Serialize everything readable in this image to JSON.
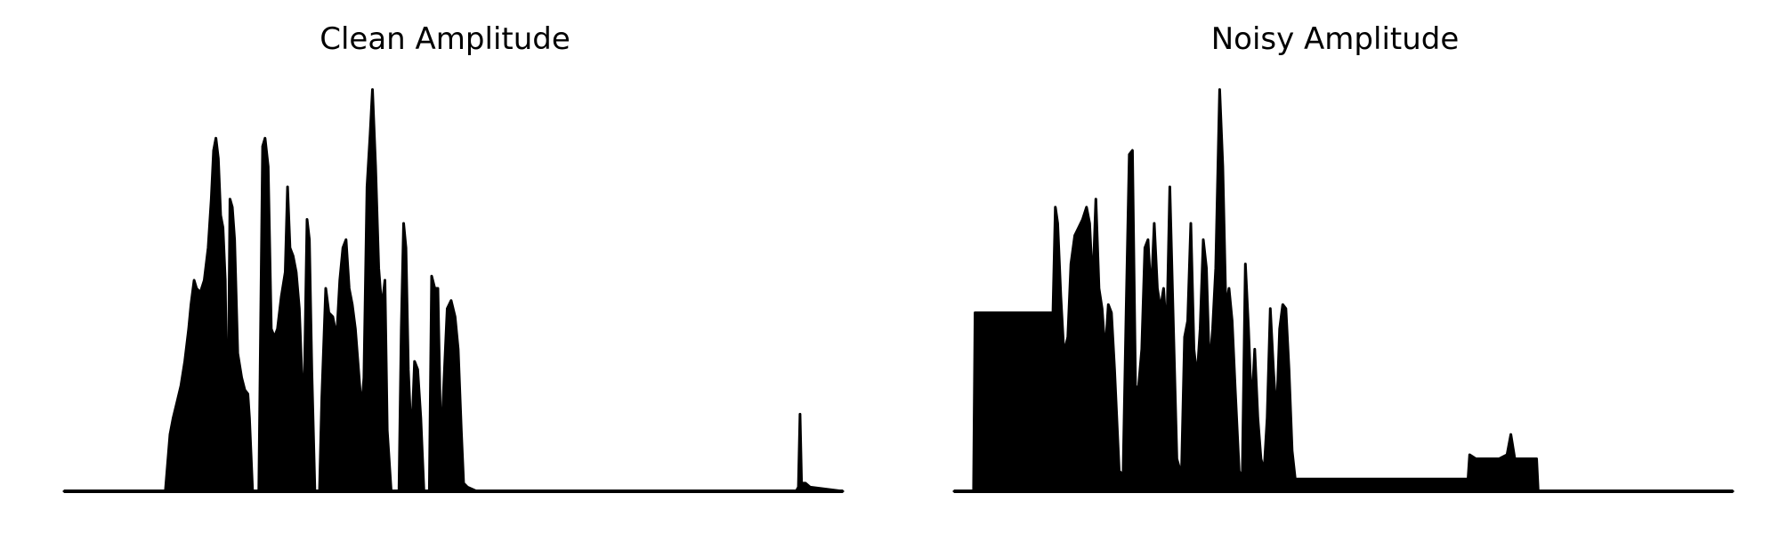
{
  "figure": {
    "background": "#ffffff",
    "line_color": "#000000"
  },
  "chart_data": [
    {
      "type": "area",
      "title": "Clean Amplitude",
      "xlabel": "",
      "ylabel": "",
      "axes_visible": false,
      "grid": false,
      "xlim": [
        0,
        1
      ],
      "ylim": [
        0,
        1
      ],
      "envelope": [
        [
          0.0,
          0.0
        ],
        [
          0.13,
          0.0
        ],
        [
          0.133,
          0.07
        ],
        [
          0.136,
          0.14
        ],
        [
          0.14,
          0.18
        ],
        [
          0.145,
          0.22
        ],
        [
          0.15,
          0.26
        ],
        [
          0.155,
          0.32
        ],
        [
          0.16,
          0.4
        ],
        [
          0.163,
          0.46
        ],
        [
          0.167,
          0.52
        ],
        [
          0.17,
          0.5
        ],
        [
          0.175,
          0.49
        ],
        [
          0.18,
          0.52
        ],
        [
          0.185,
          0.6
        ],
        [
          0.189,
          0.72
        ],
        [
          0.192,
          0.84
        ],
        [
          0.195,
          0.87
        ],
        [
          0.198,
          0.82
        ],
        [
          0.201,
          0.68
        ],
        [
          0.204,
          0.65
        ],
        [
          0.207,
          0.52
        ],
        [
          0.21,
          0.08
        ],
        [
          0.213,
          0.72
        ],
        [
          0.216,
          0.7
        ],
        [
          0.219,
          0.62
        ],
        [
          0.223,
          0.34
        ],
        [
          0.228,
          0.28
        ],
        [
          0.232,
          0.25
        ],
        [
          0.236,
          0.24
        ],
        [
          0.238,
          0.18
        ],
        [
          0.242,
          0.0
        ],
        [
          0.25,
          0.0
        ],
        [
          0.255,
          0.85
        ],
        [
          0.258,
          0.87
        ],
        [
          0.262,
          0.8
        ],
        [
          0.266,
          0.4
        ],
        [
          0.27,
          0.38
        ],
        [
          0.274,
          0.4
        ],
        [
          0.279,
          0.48
        ],
        [
          0.284,
          0.54
        ],
        [
          0.287,
          0.75
        ],
        [
          0.29,
          0.6
        ],
        [
          0.294,
          0.58
        ],
        [
          0.298,
          0.54
        ],
        [
          0.302,
          0.45
        ],
        [
          0.305,
          0.3
        ],
        [
          0.308,
          0.2
        ],
        [
          0.312,
          0.67
        ],
        [
          0.315,
          0.62
        ],
        [
          0.318,
          0.3
        ],
        [
          0.322,
          0.0
        ],
        [
          0.328,
          0.0
        ],
        [
          0.331,
          0.23
        ],
        [
          0.336,
          0.5
        ],
        [
          0.34,
          0.44
        ],
        [
          0.345,
          0.43
        ],
        [
          0.35,
          0.38
        ],
        [
          0.354,
          0.52
        ],
        [
          0.358,
          0.6
        ],
        [
          0.362,
          0.62
        ],
        [
          0.366,
          0.5
        ],
        [
          0.37,
          0.46
        ],
        [
          0.374,
          0.4
        ],
        [
          0.378,
          0.3
        ],
        [
          0.382,
          0.2
        ],
        [
          0.385,
          0.28
        ],
        [
          0.389,
          0.75
        ],
        [
          0.393,
          0.88
        ],
        [
          0.396,
          0.99
        ],
        [
          0.4,
          0.8
        ],
        [
          0.404,
          0.55
        ],
        [
          0.408,
          0.45
        ],
        [
          0.412,
          0.52
        ],
        [
          0.415,
          0.15
        ],
        [
          0.42,
          0.0
        ],
        [
          0.43,
          0.0
        ],
        [
          0.433,
          0.4
        ],
        [
          0.436,
          0.66
        ],
        [
          0.439,
          0.6
        ],
        [
          0.442,
          0.3
        ],
        [
          0.446,
          0.12
        ],
        [
          0.45,
          0.32
        ],
        [
          0.454,
          0.3
        ],
        [
          0.458,
          0.18
        ],
        [
          0.462,
          0.0
        ],
        [
          0.469,
          0.0
        ],
        [
          0.472,
          0.53
        ],
        [
          0.476,
          0.5
        ],
        [
          0.48,
          0.5
        ],
        [
          0.484,
          0.1
        ],
        [
          0.488,
          0.28
        ],
        [
          0.492,
          0.45
        ],
        [
          0.497,
          0.47
        ],
        [
          0.502,
          0.43
        ],
        [
          0.506,
          0.35
        ],
        [
          0.51,
          0.15
        ],
        [
          0.513,
          0.02
        ],
        [
          0.518,
          0.01
        ],
        [
          0.53,
          0.0
        ],
        [
          0.94,
          0.0
        ],
        [
          0.943,
          0.01
        ],
        [
          0.945,
          0.19
        ],
        [
          0.947,
          0.02
        ],
        [
          0.952,
          0.02
        ],
        [
          0.958,
          0.01
        ],
        [
          1.0,
          0.0
        ]
      ]
    },
    {
      "type": "area",
      "title": "Noisy Amplitude",
      "xlabel": "",
      "ylabel": "",
      "axes_visible": false,
      "grid": false,
      "xlim": [
        0,
        1
      ],
      "ylim": [
        0,
        1
      ],
      "envelope": [
        [
          0.0,
          0.0
        ],
        [
          0.025,
          0.0
        ],
        [
          0.027,
          0.44
        ],
        [
          0.035,
          0.44
        ],
        [
          0.06,
          0.44
        ],
        [
          0.085,
          0.44
        ],
        [
          0.11,
          0.44
        ],
        [
          0.127,
          0.44
        ],
        [
          0.13,
          0.7
        ],
        [
          0.133,
          0.66
        ],
        [
          0.137,
          0.48
        ],
        [
          0.141,
          0.34
        ],
        [
          0.146,
          0.38
        ],
        [
          0.15,
          0.56
        ],
        [
          0.155,
          0.63
        ],
        [
          0.16,
          0.65
        ],
        [
          0.165,
          0.67
        ],
        [
          0.17,
          0.7
        ],
        [
          0.174,
          0.66
        ],
        [
          0.178,
          0.5
        ],
        [
          0.182,
          0.72
        ],
        [
          0.186,
          0.5
        ],
        [
          0.19,
          0.45
        ],
        [
          0.194,
          0.34
        ],
        [
          0.198,
          0.46
        ],
        [
          0.202,
          0.44
        ],
        [
          0.206,
          0.3
        ],
        [
          0.212,
          0.05
        ],
        [
          0.217,
          0.04
        ],
        [
          0.221,
          0.45
        ],
        [
          0.225,
          0.83
        ],
        [
          0.229,
          0.84
        ],
        [
          0.233,
          0.25
        ],
        [
          0.237,
          0.26
        ],
        [
          0.241,
          0.35
        ],
        [
          0.245,
          0.6
        ],
        [
          0.249,
          0.62
        ],
        [
          0.253,
          0.48
        ],
        [
          0.257,
          0.66
        ],
        [
          0.261,
          0.5
        ],
        [
          0.265,
          0.45
        ],
        [
          0.269,
          0.5
        ],
        [
          0.273,
          0.38
        ],
        [
          0.277,
          0.75
        ],
        [
          0.281,
          0.45
        ],
        [
          0.286,
          0.08
        ],
        [
          0.292,
          0.04
        ],
        [
          0.296,
          0.38
        ],
        [
          0.3,
          0.42
        ],
        [
          0.304,
          0.66
        ],
        [
          0.308,
          0.35
        ],
        [
          0.312,
          0.28
        ],
        [
          0.316,
          0.4
        ],
        [
          0.32,
          0.62
        ],
        [
          0.324,
          0.55
        ],
        [
          0.328,
          0.3
        ],
        [
          0.332,
          0.4
        ],
        [
          0.336,
          0.55
        ],
        [
          0.341,
          0.99
        ],
        [
          0.345,
          0.8
        ],
        [
          0.349,
          0.45
        ],
        [
          0.353,
          0.5
        ],
        [
          0.357,
          0.42
        ],
        [
          0.361,
          0.25
        ],
        [
          0.366,
          0.05
        ],
        [
          0.37,
          0.03
        ],
        [
          0.374,
          0.56
        ],
        [
          0.378,
          0.4
        ],
        [
          0.382,
          0.2
        ],
        [
          0.386,
          0.35
        ],
        [
          0.39,
          0.18
        ],
        [
          0.394,
          0.08
        ],
        [
          0.398,
          0.05
        ],
        [
          0.402,
          0.18
        ],
        [
          0.406,
          0.45
        ],
        [
          0.41,
          0.3
        ],
        [
          0.414,
          0.18
        ],
        [
          0.418,
          0.4
        ],
        [
          0.422,
          0.46
        ],
        [
          0.426,
          0.45
        ],
        [
          0.43,
          0.3
        ],
        [
          0.434,
          0.1
        ],
        [
          0.438,
          0.03
        ],
        [
          0.445,
          0.03
        ],
        [
          0.47,
          0.03
        ],
        [
          0.52,
          0.03
        ],
        [
          0.57,
          0.03
        ],
        [
          0.62,
          0.03
        ],
        [
          0.65,
          0.03
        ],
        [
          0.66,
          0.03
        ],
        [
          0.662,
          0.09
        ],
        [
          0.67,
          0.08
        ],
        [
          0.68,
          0.08
        ],
        [
          0.69,
          0.08
        ],
        [
          0.7,
          0.08
        ],
        [
          0.71,
          0.09
        ],
        [
          0.715,
          0.14
        ],
        [
          0.72,
          0.08
        ],
        [
          0.73,
          0.08
        ],
        [
          0.74,
          0.08
        ],
        [
          0.748,
          0.08
        ],
        [
          0.75,
          0.0
        ],
        [
          1.0,
          0.0
        ]
      ]
    }
  ]
}
